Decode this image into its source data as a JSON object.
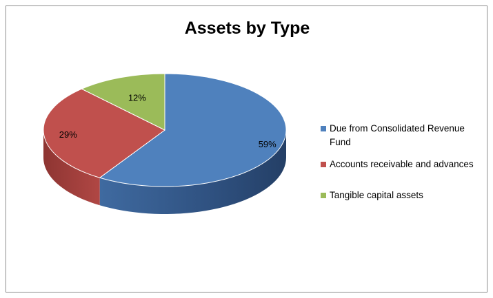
{
  "chart_data": {
    "type": "pie",
    "title": "Assets by Type",
    "categories": [
      "Due from Consolidated Revenue Fund",
      "Accounts receivable and advances",
      "Tangible capital assets"
    ],
    "values": [
      59,
      29,
      12
    ],
    "data_labels": [
      "59%",
      "29%",
      "12%"
    ],
    "colors": [
      "#4f81bd",
      "#c0504d",
      "#9bbb59"
    ],
    "legend_position": "right",
    "style": "3d"
  }
}
